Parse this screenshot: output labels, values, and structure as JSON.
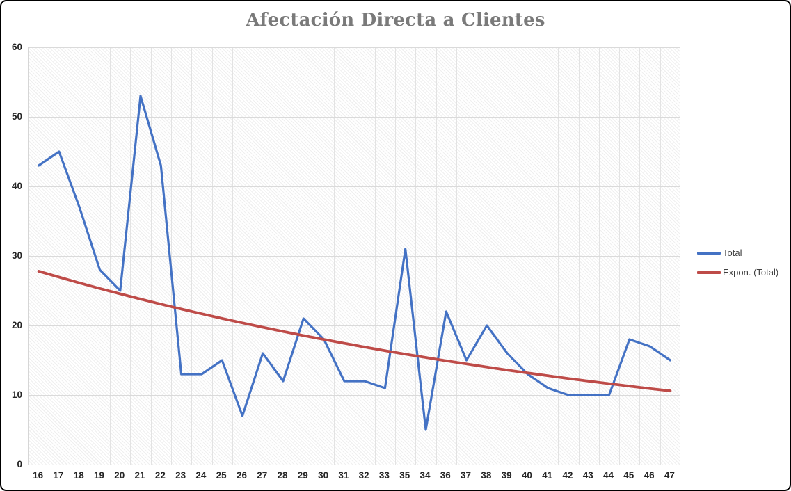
{
  "title": "Afectación Directa a Clientes",
  "legend": {
    "items": [
      {
        "label": "Total",
        "color": "#4472C4"
      },
      {
        "label": "Expon. (Total)",
        "color": "#BE4B48"
      }
    ],
    "position": "right"
  },
  "colors": {
    "series_blue": "#4472C4",
    "trend_red": "#BE4B48",
    "title_gray": "#7a7a7a",
    "gridline_h": "#dadada",
    "gridline_v": "#e3e3e3",
    "axis_text": "#262626",
    "frame_border": "#000000"
  },
  "chart_data": {
    "type": "line",
    "title": "Afectación Directa a Clientes",
    "categories": [
      "16",
      "17",
      "18",
      "19",
      "20",
      "21",
      "22",
      "23",
      "24",
      "25",
      "26",
      "27",
      "28",
      "29",
      "30",
      "31",
      "32",
      "33",
      "35",
      "34",
      "36",
      "37",
      "38",
      "39",
      "40",
      "41",
      "42",
      "43",
      "44",
      "45",
      "46",
      "47"
    ],
    "series": [
      {
        "name": "Total",
        "color": "#4472C4",
        "values": [
          43,
          45,
          37,
          28,
          25,
          53,
          43,
          13,
          13,
          15,
          7,
          16,
          12,
          21,
          18,
          12,
          12,
          11,
          31,
          5,
          22,
          15,
          20,
          16,
          13,
          11,
          10,
          10,
          10,
          18,
          17,
          15
        ]
      }
    ],
    "trendline": {
      "name": "Expon. (Total)",
      "type": "exponential",
      "color": "#BE4B48",
      "start_value": 27.8,
      "end_value": 10.6
    },
    "xlabel": "",
    "ylabel": "",
    "ylim": [
      0,
      60
    ],
    "y_ticks": [
      0,
      10,
      20,
      30,
      40,
      50,
      60
    ],
    "grid": "horizontal and vertical, light gray",
    "plot_background": "diagonal hatch pattern",
    "legend_position": "right"
  }
}
